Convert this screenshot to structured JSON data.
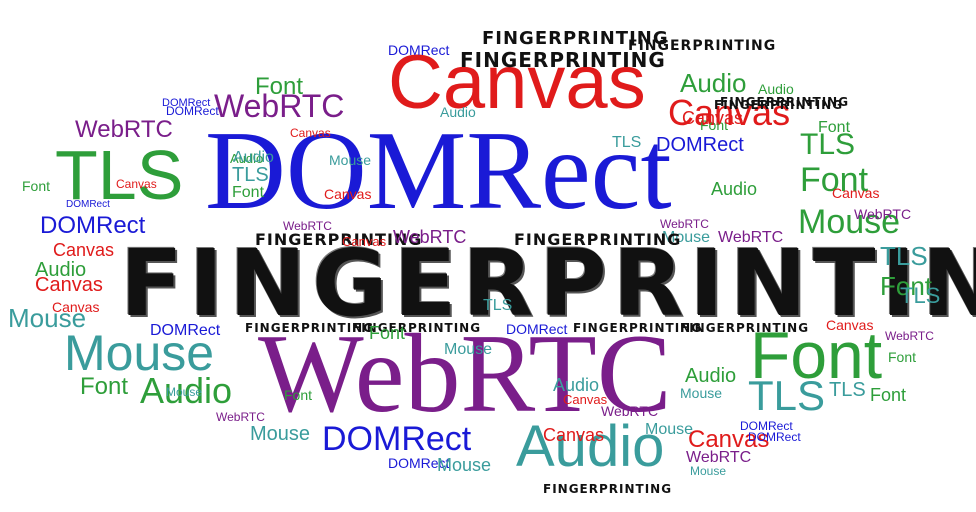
{
  "colors": {
    "blue": "#1a1ad6",
    "red": "#e01b1b",
    "green": "#2e9e3a",
    "purple": "#7a1e8a",
    "teal": "#3a9c9c",
    "black": "#111111",
    "light_green": "#4cbf4c"
  },
  "words": [
    {
      "text": "FINGERPRINTING",
      "color": "black",
      "style": "big-fp"
    },
    {
      "text": "DOMRect",
      "color": "blue",
      "style": "serif"
    },
    {
      "text": "WebRTC",
      "color": "purple",
      "style": "serif"
    },
    {
      "text": "Canvas",
      "color": "red",
      "style": "sans"
    },
    {
      "text": "TLS",
      "color": "green",
      "style": "sans"
    },
    {
      "text": "Font",
      "color": "green",
      "style": "sans"
    },
    {
      "text": "Mouse",
      "color": "teal",
      "style": "sans"
    },
    {
      "text": "Audio",
      "color": "teal",
      "style": "sans"
    },
    {
      "text": "TLS",
      "color": "teal",
      "style": "sans"
    },
    {
      "text": "DOMRect",
      "color": "blue",
      "style": "sans"
    },
    {
      "text": "Audio",
      "color": "green",
      "style": "sans"
    },
    {
      "text": "Canvas",
      "color": "red",
      "style": "sans"
    },
    {
      "text": "Font",
      "color": "green",
      "style": "sans"
    },
    {
      "text": "Mouse",
      "color": "green",
      "style": "sans"
    },
    {
      "text": "TLS",
      "color": "green",
      "style": "sans"
    },
    {
      "text": "WebRTC",
      "color": "purple",
      "style": "sans"
    },
    {
      "text": "WebRTC",
      "color": "purple",
      "style": "sans"
    },
    {
      "text": "DOMRect",
      "color": "blue",
      "style": "sans"
    },
    {
      "text": "Mouse",
      "color": "teal",
      "style": "sans"
    },
    {
      "text": "Font",
      "color": "green",
      "style": "sans"
    },
    {
      "text": "Audio",
      "color": "green",
      "style": "sans"
    },
    {
      "text": "TLS",
      "color": "teal",
      "style": "sans"
    },
    {
      "text": "Font",
      "color": "green",
      "style": "sans"
    },
    {
      "text": "Font",
      "color": "green",
      "style": "sans"
    },
    {
      "text": "FINGERPRINTING",
      "color": "black",
      "style": "fp"
    },
    {
      "text": "FINGERPRINTING",
      "color": "black",
      "style": "fp"
    },
    {
      "text": "DOMRect",
      "color": "blue",
      "style": "sans"
    },
    {
      "text": "DOMRect",
      "color": "blue",
      "style": "sans"
    },
    {
      "text": "Audio",
      "color": "green",
      "style": "sans"
    },
    {
      "text": "Audio",
      "color": "green",
      "style": "sans"
    },
    {
      "text": "FINGERPRINTING",
      "color": "black",
      "style": "fp"
    },
    {
      "text": "Canvas",
      "color": "red",
      "style": "sans"
    },
    {
      "text": "Audio",
      "color": "teal",
      "style": "sans"
    },
    {
      "text": "TLS",
      "color": "teal",
      "style": "sans"
    },
    {
      "text": "Font",
      "color": "green",
      "style": "sans"
    },
    {
      "text": "Canvas",
      "color": "red",
      "style": "sans"
    },
    {
      "text": "Mouse",
      "color": "teal",
      "style": "sans"
    },
    {
      "text": "TLS",
      "color": "teal",
      "style": "sans"
    },
    {
      "text": "Canvas",
      "color": "red",
      "style": "sans"
    },
    {
      "text": "Audio",
      "color": "green",
      "style": "sans"
    },
    {
      "text": "Canvas",
      "color": "red",
      "style": "sans"
    },
    {
      "text": "Canvas",
      "color": "red",
      "style": "sans"
    },
    {
      "text": "Mouse",
      "color": "teal",
      "style": "sans"
    },
    {
      "text": "Font",
      "color": "green",
      "style": "sans"
    },
    {
      "text": "Font",
      "color": "green",
      "style": "sans"
    },
    {
      "text": "Canvas",
      "color": "red",
      "style": "sans"
    },
    {
      "text": "WebRTC",
      "color": "purple",
      "style": "sans"
    },
    {
      "text": "TLS",
      "color": "teal",
      "style": "sans"
    },
    {
      "text": "Font",
      "color": "green",
      "style": "sans"
    },
    {
      "text": "FINGERPRINTING",
      "color": "black",
      "style": "fp"
    },
    {
      "text": "FINGERPRINTING",
      "color": "black",
      "style": "fp"
    },
    {
      "text": "FINGERPRINTING",
      "color": "black",
      "style": "fp"
    },
    {
      "text": "FINGERPRINTING",
      "color": "black",
      "style": "fp"
    },
    {
      "text": "FINGERPRINTING",
      "color": "black",
      "style": "fp"
    },
    {
      "text": "FINGERPRINTING",
      "color": "black",
      "style": "fp"
    },
    {
      "text": "FINGERPRINTING",
      "color": "black",
      "style": "fp"
    },
    {
      "text": "FINGERPRINTING",
      "color": "black",
      "style": "fp"
    },
    {
      "text": "DOMRect",
      "color": "blue",
      "style": "sans"
    },
    {
      "text": "Canvas",
      "color": "red",
      "style": "sans"
    },
    {
      "text": "WebRTC",
      "color": "purple",
      "style": "sans"
    },
    {
      "text": "Font",
      "color": "green",
      "style": "sans"
    },
    {
      "text": "TLS",
      "color": "teal",
      "style": "sans"
    },
    {
      "text": "DOMRect",
      "color": "blue",
      "style": "sans"
    },
    {
      "text": "DOMRect",
      "color": "blue",
      "style": "sans"
    },
    {
      "text": "Mouse",
      "color": "teal",
      "style": "sans"
    },
    {
      "text": "Canvas",
      "color": "red",
      "style": "sans"
    },
    {
      "text": "WebRTC",
      "color": "purple",
      "style": "sans"
    },
    {
      "text": "Font",
      "color": "green",
      "style": "sans"
    },
    {
      "text": "Mouse",
      "color": "teal",
      "style": "sans"
    },
    {
      "text": "Audio",
      "color": "teal",
      "style": "sans"
    },
    {
      "text": "Mouse",
      "color": "teal",
      "style": "sans"
    },
    {
      "text": "Audio",
      "color": "green",
      "style": "sans"
    },
    {
      "text": "Canvas",
      "color": "red",
      "style": "sans"
    },
    {
      "text": "WebRTC",
      "color": "purple",
      "style": "sans"
    },
    {
      "text": "Mouse",
      "color": "teal",
      "style": "sans"
    },
    {
      "text": "Canvas",
      "color": "red",
      "style": "sans"
    },
    {
      "text": "WebRTC",
      "color": "purple",
      "style": "sans"
    },
    {
      "text": "TLS",
      "color": "teal",
      "style": "sans"
    },
    {
      "text": "Mouse",
      "color": "teal",
      "style": "sans"
    },
    {
      "text": "DOMRect",
      "color": "blue",
      "style": "sans"
    },
    {
      "text": "WebRTC",
      "color": "purple",
      "style": "sans"
    },
    {
      "text": "WebRTC",
      "color": "purple",
      "style": "sans"
    },
    {
      "text": "Canvas",
      "color": "red",
      "style": "sans"
    },
    {
      "text": "Font",
      "color": "green",
      "style": "sans"
    },
    {
      "text": "DOMRect",
      "color": "blue",
      "style": "sans"
    },
    {
      "text": "Mouse",
      "color": "teal",
      "style": "sans"
    },
    {
      "text": "WebRTC",
      "color": "purple",
      "style": "sans"
    },
    {
      "text": "Mouse",
      "color": "teal",
      "style": "sans"
    },
    {
      "text": "FINGERPRINTING",
      "color": "black",
      "style": "fp"
    },
    {
      "text": "DOMRect",
      "color": "blue",
      "style": "sans"
    },
    {
      "text": "DOMRect",
      "color": "blue",
      "style": "sans"
    },
    {
      "text": "Canvas",
      "color": "red",
      "style": "sans"
    },
    {
      "text": "Audio",
      "color": "teal",
      "style": "sans"
    },
    {
      "text": "Audio",
      "color": "green",
      "style": "sans"
    },
    {
      "text": "Canvas",
      "color": "red",
      "style": "sans"
    },
    {
      "text": "WebRTC",
      "color": "purple",
      "style": "sans"
    },
    {
      "text": "Canvas",
      "color": "red",
      "style": "sans"
    },
    {
      "text": "DOMRect",
      "color": "blue",
      "style": "sans"
    },
    {
      "text": "Font",
      "color": "green",
      "style": "sans"
    }
  ]
}
